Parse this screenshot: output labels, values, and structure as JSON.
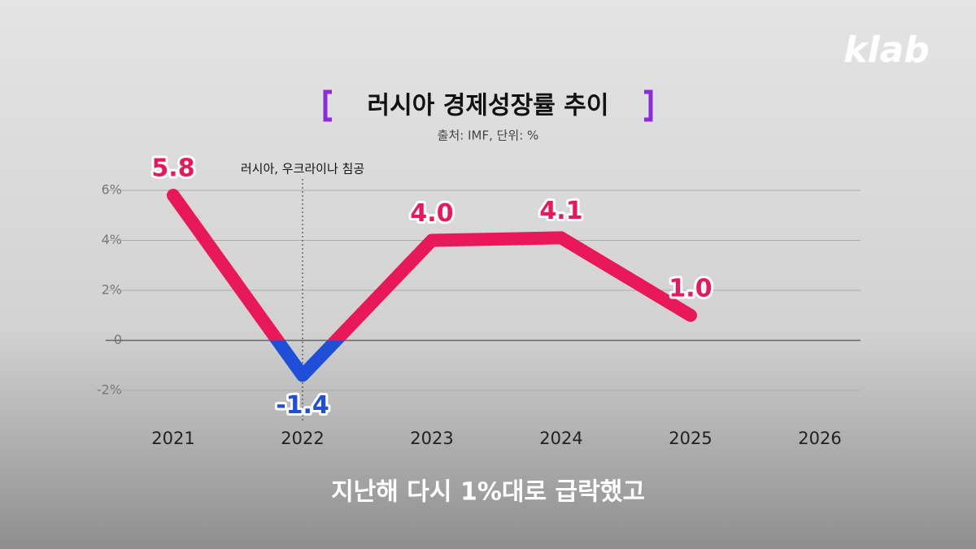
{
  "chart_data": {
    "type": "line",
    "title": "러시아 경제성장률 추이",
    "subtitle": "출처: IMF, 단위: %",
    "annotation": "러시아, 우크라이나 침공",
    "annotation_category": 1,
    "categories": [
      "2021",
      "2022",
      "2023",
      "2024",
      "2025",
      "2026"
    ],
    "values": [
      5.8,
      -1.4,
      4.0,
      4.1,
      1.0,
      null
    ],
    "value_labels": [
      "5.8",
      "-1.4",
      "4.0",
      "4.1",
      "1.0",
      null
    ],
    "color": "#e8185a",
    "negative_color": "#1f4fd8",
    "ylim": [
      -2,
      6
    ],
    "yticks": [
      {
        "value": -2,
        "label": "-2%"
      },
      0,
      {
        "value": 2,
        "label": "2%"
      },
      {
        "value": 4,
        "label": "4%"
      },
      {
        "value": 6,
        "label": "6%"
      }
    ],
    "grid": true
  },
  "caption": "지난해 다시 1%대로 급락했고",
  "logo": "klab"
}
